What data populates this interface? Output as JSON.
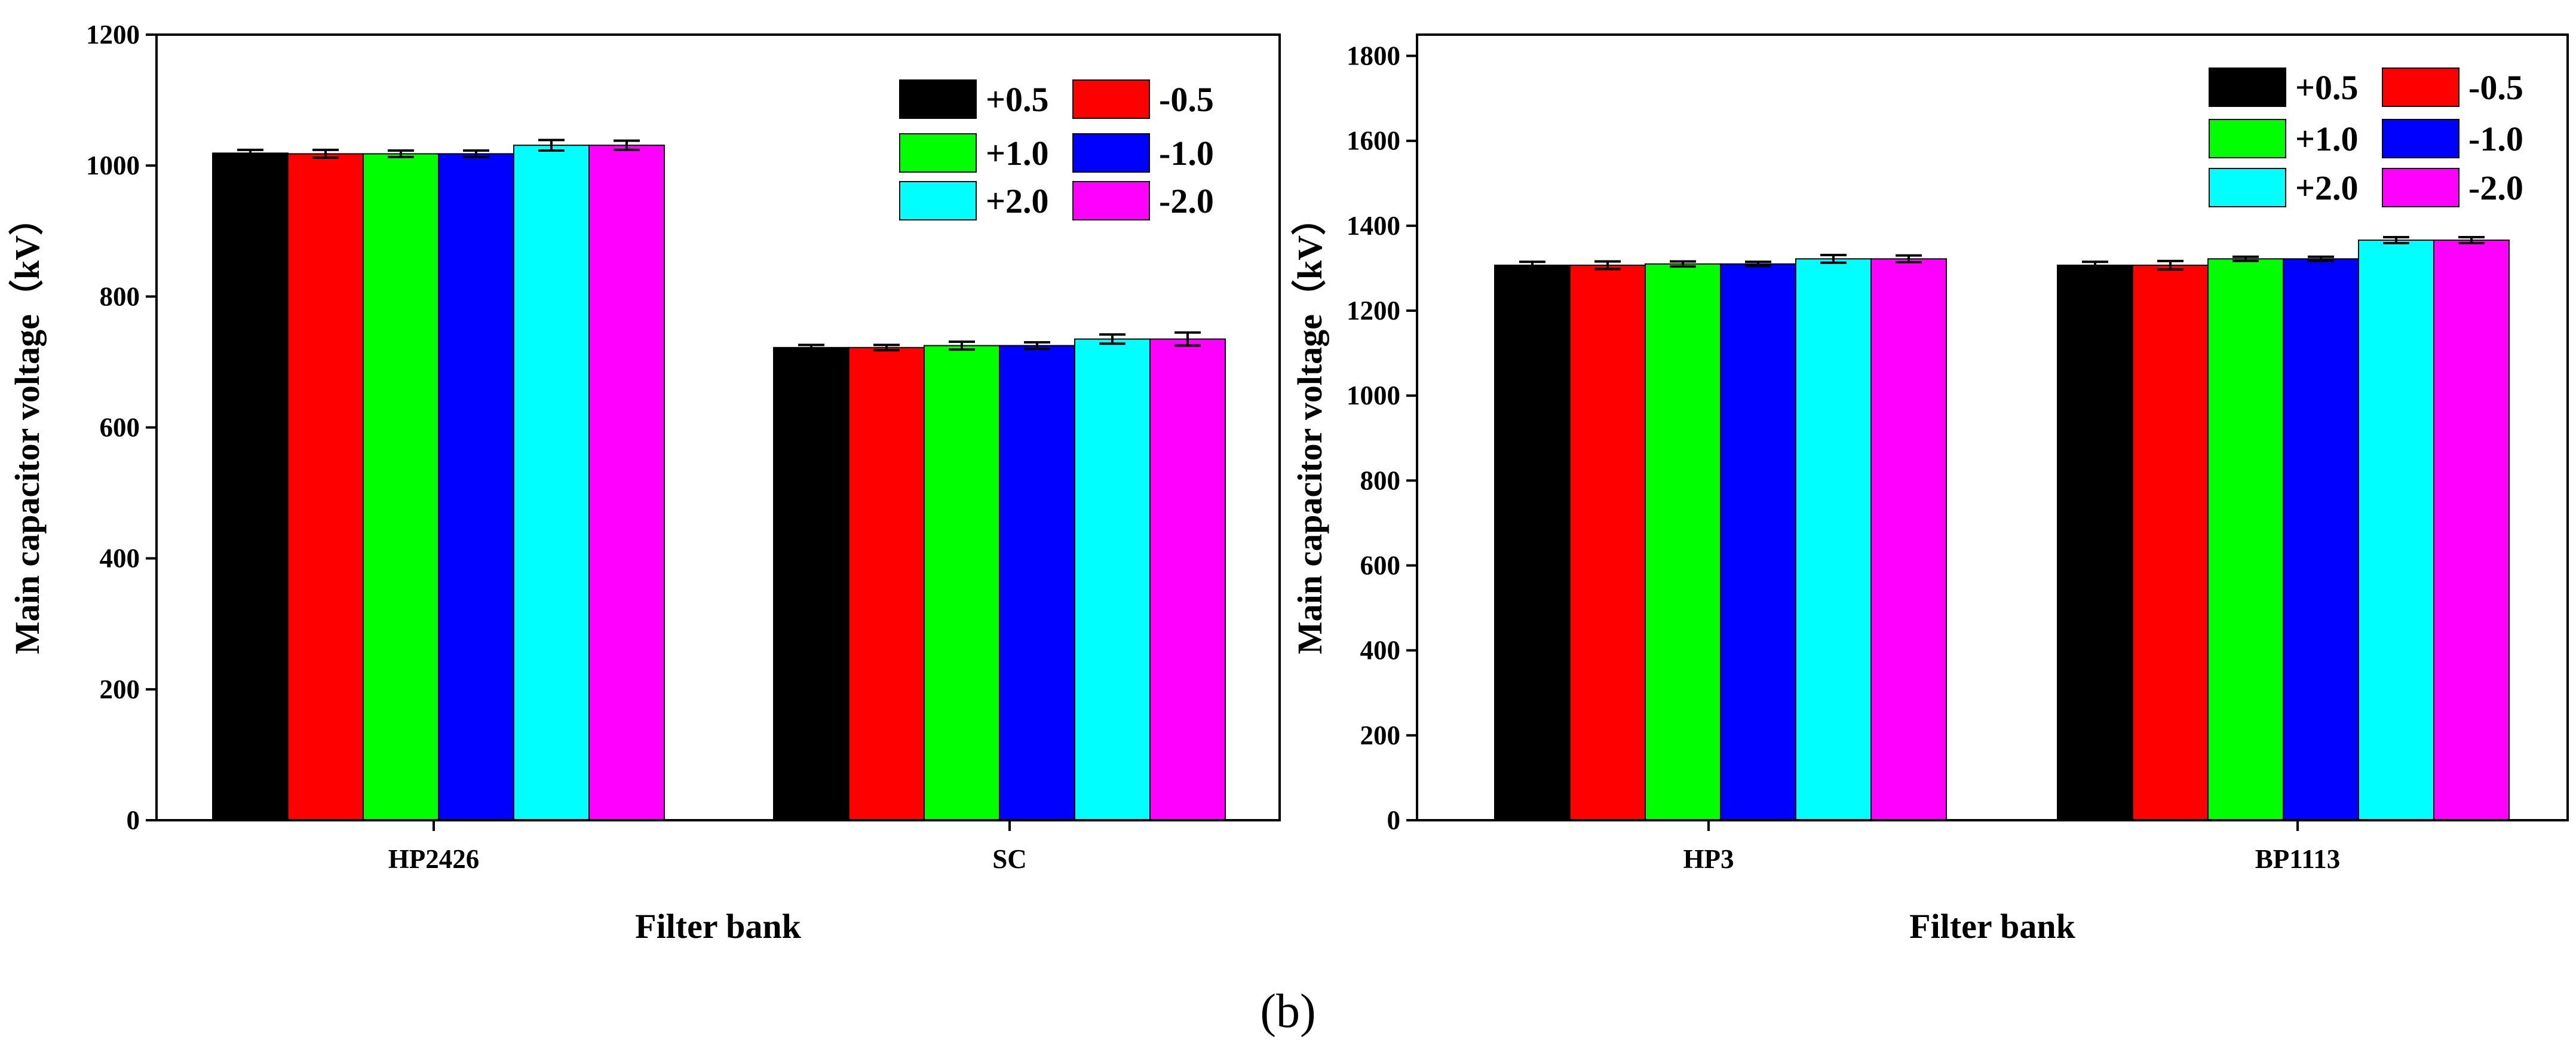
{
  "caption": "(b)",
  "chart_data": [
    {
      "type": "bar",
      "title": "",
      "xlabel": "Filter bank",
      "ylabel": "Main capacitor voltage（kV）",
      "ylim": [
        0,
        1200
      ],
      "yticks": [
        0,
        200,
        400,
        600,
        800,
        1000,
        1200
      ],
      "grid": false,
      "legend_position": "top-right",
      "categories": [
        "HP2426",
        "SC"
      ],
      "series": [
        {
          "name": "+0.5",
          "color": "#000000",
          "values": [
            1019,
            722
          ],
          "errors": [
            5,
            4
          ]
        },
        {
          "name": "-0.5",
          "color": "#ff0000",
          "values": [
            1018,
            722
          ],
          "errors": [
            6,
            4
          ]
        },
        {
          "name": "+1.0",
          "color": "#00ff00",
          "values": [
            1018,
            725
          ],
          "errors": [
            5,
            6
          ]
        },
        {
          "name": "-1.0",
          "color": "#0000ff",
          "values": [
            1018,
            725
          ],
          "errors": [
            5,
            5
          ]
        },
        {
          "name": "+2.0",
          "color": "#00ffff",
          "values": [
            1031,
            735
          ],
          "errors": [
            8,
            7
          ]
        },
        {
          "name": "-2.0",
          "color": "#ff00ff",
          "values": [
            1031,
            735
          ],
          "errors": [
            7,
            10
          ]
        }
      ]
    },
    {
      "type": "bar",
      "title": "",
      "xlabel": "Filter bank",
      "ylabel": "Main capacitor voltage（kV）",
      "ylim": [
        0,
        1850
      ],
      "yticks": [
        0,
        200,
        400,
        600,
        800,
        1000,
        1200,
        1400,
        1600,
        1800
      ],
      "grid": false,
      "legend_position": "top-right",
      "categories": [
        "HP3",
        "BP1113"
      ],
      "series": [
        {
          "name": "+0.5",
          "color": "#000000",
          "values": [
            1307,
            1307
          ],
          "errors": [
            8,
            8
          ]
        },
        {
          "name": "-0.5",
          "color": "#ff0000",
          "values": [
            1307,
            1307
          ],
          "errors": [
            9,
            10
          ]
        },
        {
          "name": "+1.0",
          "color": "#00ff00",
          "values": [
            1310,
            1322
          ],
          "errors": [
            6,
            5
          ]
        },
        {
          "name": "-1.0",
          "color": "#0000ff",
          "values": [
            1310,
            1322
          ],
          "errors": [
            5,
            5
          ]
        },
        {
          "name": "+2.0",
          "color": "#00ffff",
          "values": [
            1322,
            1366
          ],
          "errors": [
            9,
            7
          ]
        },
        {
          "name": "-2.0",
          "color": "#ff00ff",
          "values": [
            1322,
            1366
          ],
          "errors": [
            8,
            7
          ]
        }
      ]
    }
  ]
}
